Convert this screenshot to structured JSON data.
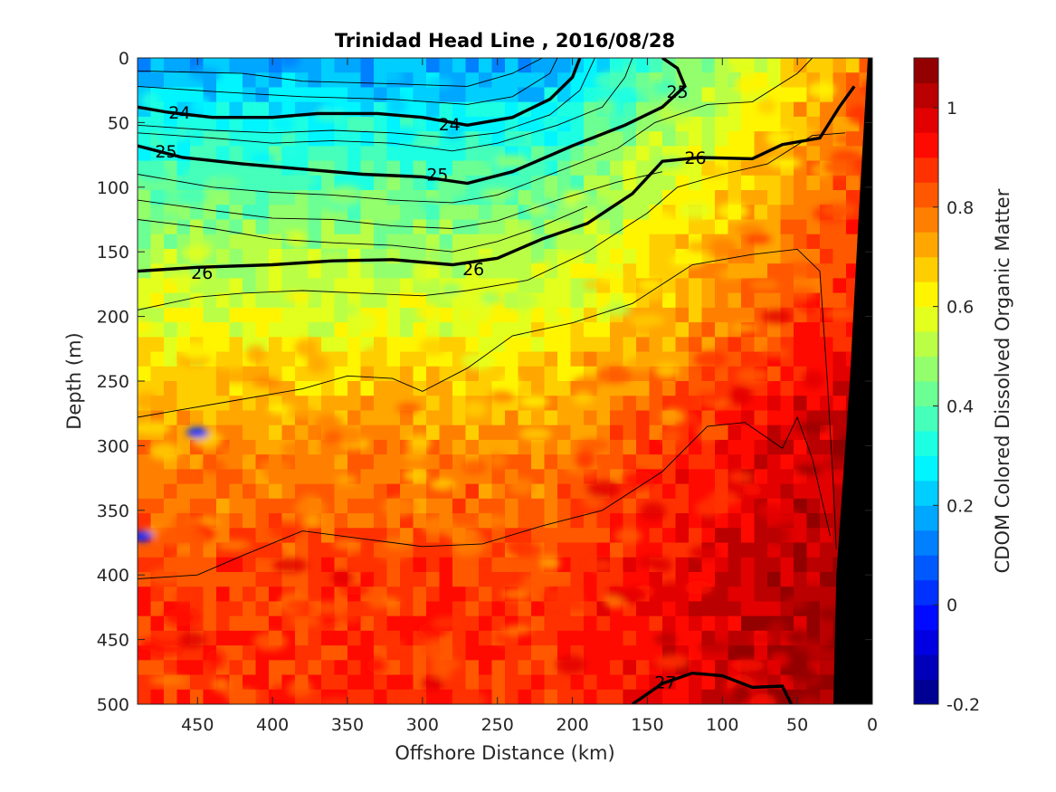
{
  "chart_data": {
    "type": "heatmap",
    "title": "Trinidad Head Line , 2016/08/28",
    "xlabel": "Offshore Distance (km)",
    "ylabel": "Depth (m)",
    "xlim": [
      490,
      0
    ],
    "ylim": [
      0,
      500
    ],
    "x_ticks": [
      450,
      400,
      350,
      300,
      250,
      200,
      150,
      100,
      50,
      0
    ],
    "y_ticks": [
      0,
      50,
      100,
      150,
      200,
      250,
      300,
      350,
      400,
      450,
      500
    ],
    "colorbar": {
      "label": "CDOM Colored Dissolved Organic Matter",
      "range": [
        -0.2,
        1.1
      ],
      "ticks": [
        -0.2,
        0,
        0.2,
        0.4,
        0.6,
        0.8,
        1
      ],
      "tick_labels": [
        "-0.2",
        "0",
        "0.2",
        "0.4",
        "0.6",
        "0.8",
        "1"
      ],
      "levels": 26,
      "colormap": "jet"
    },
    "field_profile": [
      {
        "depth": 0,
        "value": 0.16
      },
      {
        "depth": 50,
        "value": 0.3
      },
      {
        "depth": 100,
        "value": 0.4
      },
      {
        "depth": 150,
        "value": 0.5
      },
      {
        "depth": 200,
        "value": 0.58
      },
      {
        "depth": 250,
        "value": 0.68
      },
      {
        "depth": 300,
        "value": 0.76
      },
      {
        "depth": 400,
        "value": 0.86
      },
      {
        "depth": 500,
        "value": 0.88
      }
    ],
    "isopycnals": [
      {
        "label": "24",
        "bold": true,
        "points": [
          [
            490,
            38
          ],
          [
            470,
            42
          ],
          [
            440,
            46
          ],
          [
            400,
            46
          ],
          [
            370,
            43
          ],
          [
            330,
            43
          ],
          [
            300,
            46
          ],
          [
            270,
            52
          ],
          [
            240,
            46
          ],
          [
            215,
            32
          ],
          [
            200,
            15
          ],
          [
            195,
            0
          ]
        ],
        "labels": [
          {
            "text": "24",
            "x": 462,
            "y": 42
          },
          {
            "text": "24",
            "x": 282,
            "y": 51
          }
        ]
      },
      {
        "label": "25",
        "bold": true,
        "points": [
          [
            490,
            68
          ],
          [
            460,
            77
          ],
          [
            420,
            82
          ],
          [
            380,
            86
          ],
          [
            340,
            90
          ],
          [
            300,
            92
          ],
          [
            270,
            97
          ],
          [
            240,
            88
          ],
          [
            200,
            68
          ],
          [
            165,
            52
          ],
          [
            140,
            38
          ],
          [
            125,
            22
          ],
          [
            130,
            8
          ],
          [
            140,
            0
          ]
        ],
        "labels": [
          {
            "text": "25",
            "x": 471,
            "y": 72
          },
          {
            "text": "25",
            "x": 290,
            "y": 90
          },
          {
            "text": "25",
            "x": 130,
            "y": 26
          }
        ]
      },
      {
        "label": "26",
        "bold": true,
        "points": [
          [
            490,
            165
          ],
          [
            450,
            162
          ],
          [
            400,
            160
          ],
          [
            360,
            157
          ],
          [
            320,
            156
          ],
          [
            280,
            160
          ],
          [
            250,
            155
          ],
          [
            220,
            140
          ],
          [
            190,
            128
          ],
          [
            160,
            105
          ],
          [
            140,
            80
          ],
          [
            115,
            77
          ],
          [
            80,
            78
          ],
          [
            60,
            67
          ],
          [
            35,
            62
          ],
          [
            22,
            38
          ],
          [
            12,
            22
          ]
        ],
        "labels": [
          {
            "text": "26",
            "x": 447,
            "y": 166
          },
          {
            "text": "26",
            "x": 266,
            "y": 163
          },
          {
            "text": "26",
            "x": 118,
            "y": 77
          }
        ]
      },
      {
        "label": "27",
        "bold": true,
        "points": [
          [
            160,
            500
          ],
          [
            140,
            484
          ],
          [
            120,
            476
          ],
          [
            100,
            478
          ],
          [
            80,
            487
          ],
          [
            60,
            486
          ],
          [
            54,
            500
          ]
        ],
        "labels": [
          {
            "text": "27",
            "x": 138,
            "y": 483
          }
        ]
      },
      {
        "label": "",
        "bold": false,
        "points": [
          [
            490,
            278
          ],
          [
            460,
            272
          ],
          [
            420,
            264
          ],
          [
            380,
            256
          ],
          [
            350,
            246
          ],
          [
            320,
            248
          ],
          [
            300,
            258
          ],
          [
            270,
            240
          ],
          [
            240,
            215
          ],
          [
            200,
            205
          ],
          [
            160,
            190
          ],
          [
            120,
            160
          ],
          [
            80,
            152
          ],
          [
            50,
            148
          ],
          [
            35,
            165
          ],
          [
            30,
            250
          ],
          [
            26,
            330
          ],
          [
            24,
            380
          ]
        ],
        "labels": []
      },
      {
        "label": "",
        "bold": false,
        "points": [
          [
            490,
            403
          ],
          [
            450,
            400
          ],
          [
            420,
            385
          ],
          [
            380,
            366
          ],
          [
            340,
            372
          ],
          [
            300,
            378
          ],
          [
            260,
            376
          ],
          [
            220,
            362
          ],
          [
            180,
            350
          ],
          [
            140,
            320
          ],
          [
            110,
            285
          ],
          [
            85,
            282
          ],
          [
            60,
            302
          ],
          [
            50,
            278
          ],
          [
            40,
            310
          ],
          [
            28,
            370
          ]
        ],
        "labels": []
      }
    ],
    "thin_contours": [
      [
        [
          490,
          10
        ],
        [
          420,
          12
        ],
        [
          380,
          18
        ],
        [
          320,
          20
        ],
        [
          270,
          22
        ],
        [
          240,
          12
        ],
        [
          220,
          0
        ]
      ],
      [
        [
          490,
          22
        ],
        [
          440,
          26
        ],
        [
          380,
          30
        ],
        [
          320,
          32
        ],
        [
          270,
          36
        ],
        [
          240,
          30
        ],
        [
          215,
          12
        ],
        [
          210,
          0
        ]
      ],
      [
        [
          490,
          52
        ],
        [
          440,
          56
        ],
        [
          400,
          58
        ],
        [
          360,
          56
        ],
        [
          320,
          58
        ],
        [
          280,
          62
        ],
        [
          250,
          58
        ],
        [
          215,
          44
        ],
        [
          195,
          25
        ],
        [
          185,
          0
        ]
      ],
      [
        [
          490,
          58
        ],
        [
          440,
          62
        ],
        [
          400,
          66
        ],
        [
          360,
          64
        ],
        [
          320,
          66
        ],
        [
          280,
          72
        ],
        [
          250,
          66
        ],
        [
          210,
          52
        ],
        [
          180,
          38
        ],
        [
          165,
          15
        ],
        [
          160,
          0
        ]
      ],
      [
        [
          490,
          90
        ],
        [
          440,
          100
        ],
        [
          400,
          104
        ],
        [
          360,
          106
        ],
        [
          320,
          110
        ],
        [
          280,
          112
        ],
        [
          250,
          106
        ],
        [
          210,
          88
        ],
        [
          170,
          70
        ],
        [
          145,
          50
        ],
        [
          110,
          36
        ],
        [
          80,
          34
        ],
        [
          50,
          12
        ],
        [
          40,
          0
        ]
      ],
      [
        [
          490,
          110
        ],
        [
          440,
          118
        ],
        [
          400,
          124
        ],
        [
          360,
          125
        ],
        [
          320,
          130
        ],
        [
          280,
          132
        ],
        [
          250,
          126
        ],
        [
          210,
          110
        ],
        [
          170,
          96
        ],
        [
          140,
          88
        ]
      ],
      [
        [
          490,
          125
        ],
        [
          440,
          132
        ],
        [
          400,
          140
        ],
        [
          360,
          143
        ],
        [
          320,
          145
        ],
        [
          280,
          150
        ],
        [
          250,
          142
        ],
        [
          220,
          130
        ],
        [
          190,
          115
        ]
      ],
      [
        [
          490,
          195
        ],
        [
          450,
          185
        ],
        [
          420,
          182
        ],
        [
          380,
          180
        ],
        [
          340,
          182
        ],
        [
          300,
          184
        ],
        [
          270,
          180
        ],
        [
          230,
          172
        ],
        [
          190,
          150
        ],
        [
          150,
          120
        ],
        [
          130,
          100
        ],
        [
          100,
          90
        ],
        [
          70,
          82
        ],
        [
          40,
          60
        ],
        [
          18,
          58
        ]
      ]
    ],
    "anomalies": [
      {
        "x": 450,
        "y": 290,
        "value": 0.0
      },
      {
        "x": 487,
        "y": 370,
        "value": 0.02
      }
    ]
  }
}
